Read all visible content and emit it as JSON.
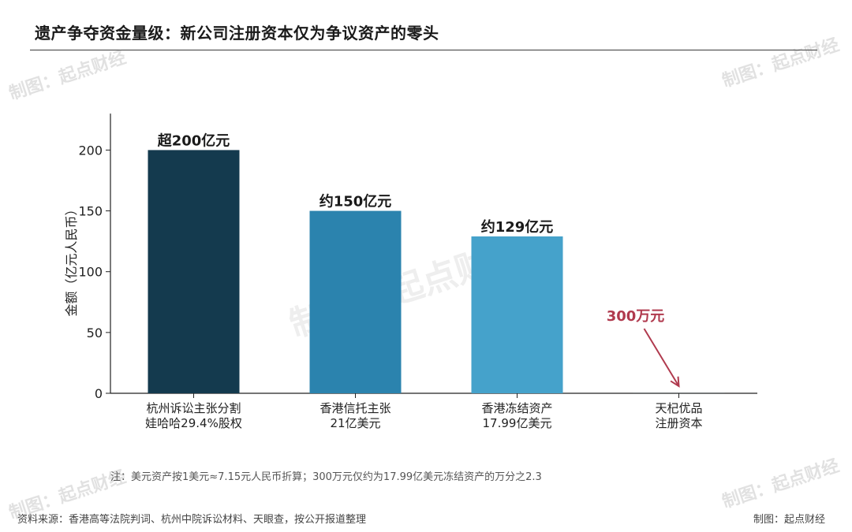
{
  "title": "遗产争夺资金量级：新公司注册资本仅为争议资产的零头",
  "watermark": "制图：起点财经",
  "note": "注：美元资产按1美元≈7.15元人民币折算；300万元仅约为17.99亿美元冻结资产的万分之2.3",
  "source": "资料来源：香港高等法院判词、杭州中院诉讼材料、天眼查，按公开报道整理",
  "credit": "制图：起点财经",
  "chart_data": {
    "type": "bar",
    "ylabel": "金额（亿元人民币）",
    "ylim": [
      0,
      230
    ],
    "yticks": [
      0,
      50,
      100,
      150,
      200
    ],
    "categories": [
      [
        "杭州诉讼主张分割",
        "娃哈哈29.4%股权"
      ],
      [
        "香港信托主张",
        "21亿美元"
      ],
      [
        "香港冻结资产",
        "17.99亿美元"
      ],
      [
        "天杞优品",
        "注册资本"
      ]
    ],
    "values": [
      200,
      150,
      129,
      0.03
    ],
    "data_labels": [
      "超200亿元",
      "约150亿元",
      "约129亿元",
      ""
    ],
    "colors": [
      "#143a4e",
      "#2b83ae",
      "#45a2cb",
      "#45a2cb"
    ],
    "annotation": {
      "text": "300万元",
      "target_category": 3,
      "color": "#b03a4e"
    },
    "grid": false,
    "legend": "none"
  }
}
